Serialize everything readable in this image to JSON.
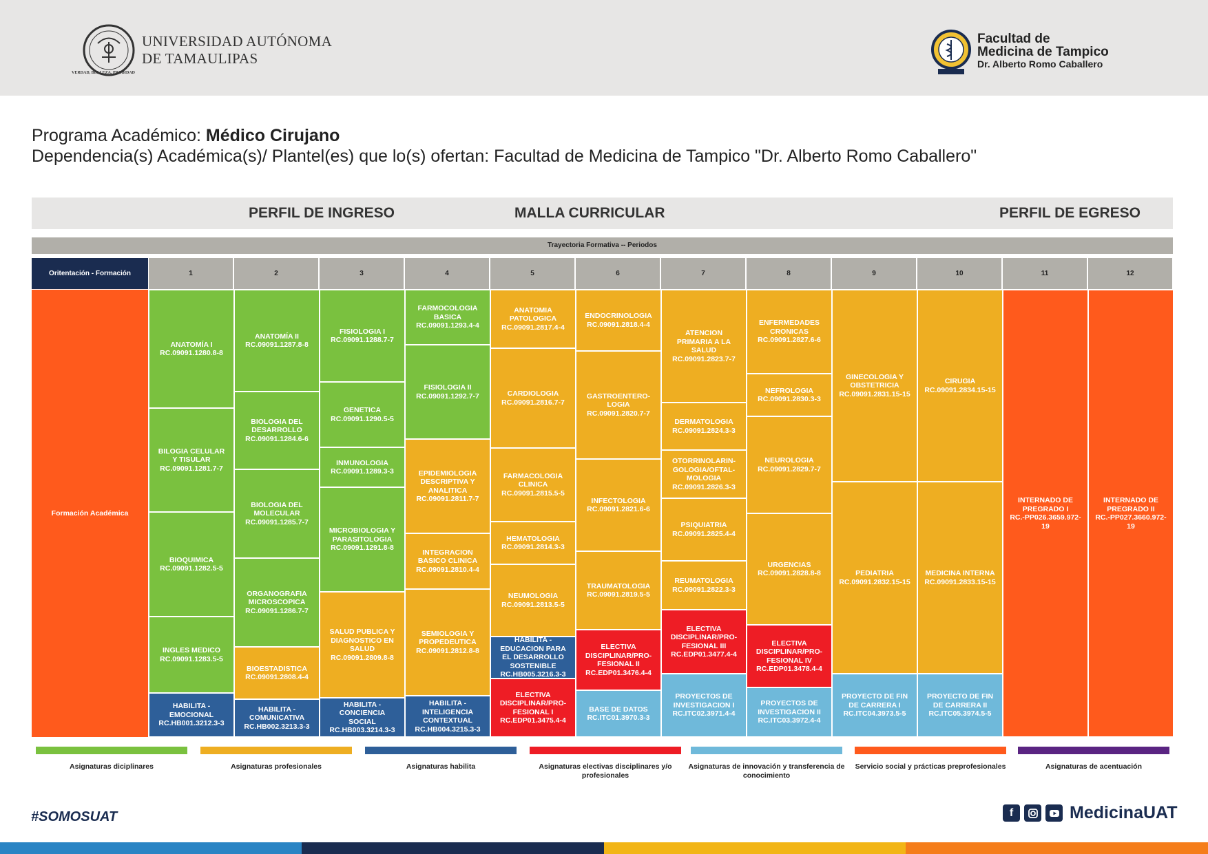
{
  "header": {
    "university_line1": "UNIVERSIDAD AUTÓNOMA",
    "university_line2": "DE TAMAULIPAS",
    "motto": "VERDAD, BELLEZA, PROBIDAD",
    "faculty_line1": "Facultad de",
    "faculty_line2": "Medicina de Tampico",
    "faculty_sub": "Dr. Alberto Romo Caballero"
  },
  "program": {
    "label": "Programa Académico: ",
    "name": "Médico Cirujano",
    "dependencia": "Dependencia(s) Académica(s)/ Plantel(es) que lo(s) ofertan: Facultad de Medicina de Tampico \"Dr. Alberto Romo Caballero\""
  },
  "band": {
    "ingreso": "PERFIL DE INGRESO",
    "malla": "MALLA CURRICULAR",
    "egreso": "PERFIL DE EGRESO"
  },
  "grid": {
    "trayectoria": "Trayectoria Formativa -- Periodos",
    "orientation_header": "Oritentación - Formación",
    "periods": [
      "1",
      "2",
      "3",
      "4",
      "5",
      "6",
      "7",
      "8",
      "9",
      "10",
      "11",
      "12"
    ],
    "orientation_label": "Formación Académica",
    "columns": [
      [
        {
          "n": "ANATOMÍA I",
          "c": "RC.09091.1280.8-8",
          "t": "g"
        },
        {
          "n": "BILOGIA CELULAR Y TISULAR",
          "c": "RC.09091.1281.7-7",
          "t": "g"
        },
        {
          "n": "BIOQUIMICA",
          "c": "RC.09091.1282.5-5",
          "t": "g"
        },
        {
          "n": "INGLES MEDICO",
          "c": "RC.09091.1283.5-5",
          "t": "g"
        },
        {
          "n": "HABILITA - EMOCIONAL",
          "c": "RC.HB001.3212.3-3",
          "t": "b"
        }
      ],
      [
        {
          "n": "ANATOMÍA II",
          "c": "RC.09091.1287.8-8",
          "t": "g"
        },
        {
          "n": "BIOLOGIA DEL DESARROLLO",
          "c": "RC.09091.1284.6-6",
          "t": "g"
        },
        {
          "n": "BIOLOGIA DEL MOLECULAR",
          "c": "RC.09091.1285.7-7",
          "t": "g"
        },
        {
          "n": "ORGANOGRAFIA MICROSCOPICA",
          "c": "RC.09091.1286.7-7",
          "t": "g"
        },
        {
          "n": "BIOESTADISTICA",
          "c": "RC.09091.2808.4-4",
          "t": "o"
        },
        {
          "n": "HABILITA - COMUNICATIVA",
          "c": "RC.HB002.3213.3-3",
          "t": "b"
        }
      ],
      [
        {
          "n": "FISIOLOGIA I",
          "c": "RC.09091.1288.7-7",
          "t": "g"
        },
        {
          "n": "GENETICA",
          "c": "RC.09091.1290.5-5",
          "t": "g"
        },
        {
          "n": "INMUNOLOGIA",
          "c": "RC.09091.1289.3-3",
          "t": "g"
        },
        {
          "n": "MICROBIOLOGIA Y PARASITOLOGIA",
          "c": "RC.09091.1291.8-8",
          "t": "g"
        },
        {
          "n": "SALUD PUBLICA Y DIAGNOSTICO EN SALUD",
          "c": "RC.09091.2809.8-8",
          "t": "o"
        },
        {
          "n": "HABILITA - CONCIENCIA SOCIAL",
          "c": "RC.HB003.3214.3-3",
          "t": "b"
        }
      ],
      [
        {
          "n": "FARMOCOLOGIA BASICA",
          "c": "RC.09091.1293.4-4",
          "t": "g"
        },
        {
          "n": "FISIOLOGIA II",
          "c": "RC.09091.1292.7-7",
          "t": "g"
        },
        {
          "n": "EPIDEMIOLOGIA DESCRIPTIVA Y ANALITICA",
          "c": "RC.09091.2811.7-7",
          "t": "o"
        },
        {
          "n": "INTEGRACION BASICO CLINICA",
          "c": "RC.09091.2810.4-4",
          "t": "o"
        },
        {
          "n": "SEMIOLOGIA Y PROPEDEUTICA",
          "c": "RC.09091.2812.8-8",
          "t": "o"
        },
        {
          "n": "HABILITA - INTELIGENCIA CONTEXTUAL",
          "c": "RC.HB004.3215.3-3",
          "t": "b"
        }
      ],
      [
        {
          "n": "ANATOMIA PATOLOGICA",
          "c": "RC.09091.2817.4-4",
          "t": "o"
        },
        {
          "n": "CARDIOLOGIA",
          "c": "RC.09091.2816.7-7",
          "t": "o"
        },
        {
          "n": "FARMACOLOGIA CLINICA",
          "c": "RC.09091.2815.5-5",
          "t": "o"
        },
        {
          "n": "HEMATOLOGIA",
          "c": "RC.09091.2814.3-3",
          "t": "o"
        },
        {
          "n": "NEUMOLOGIA",
          "c": "RC.09091.2813.5-5",
          "t": "o"
        },
        {
          "n": "HABILITA - EDUCACION PARA EL DESARROLLO SOSTENIBLE",
          "c": "RC.HB005.3216.3-3",
          "t": "b"
        },
        {
          "n": "ELECTIVA DISCIPLINAR/PRO-FESIONAL I",
          "c": "RC.EDP01.3475.4-4",
          "t": "r"
        }
      ],
      [
        {
          "n": "ENDOCRINOLOGIA",
          "c": "RC.09091.2818.4-4",
          "t": "o"
        },
        {
          "n": "GASTROENTERO-LOGIA",
          "c": "RC.09091.2820.7-7",
          "t": "o"
        },
        {
          "n": "INFECTOLOGIA",
          "c": "RC.09091.2821.6-6",
          "t": "o"
        },
        {
          "n": "TRAUMATOLOGIA",
          "c": "RC.09091.2819.5-5",
          "t": "o"
        },
        {
          "n": "ELECTIVA DISCIPLINAR/PRO-FESIONAL II",
          "c": "RC.EDP01.3476.4-4",
          "t": "r"
        },
        {
          "n": "BASE DE DATOS",
          "c": "RC.ITC01.3970.3-3",
          "t": "lb"
        }
      ],
      [
        {
          "n": "ATENCION PRIMARIA A LA SALUD",
          "c": "RC.09091.2823.7-7",
          "t": "o"
        },
        {
          "n": "DERMATOLOGIA",
          "c": "RC.09091.2824.3-3",
          "t": "o"
        },
        {
          "n": "OTORRINOLARIN-GOLOGIA/OFTAL-MOLOGIA",
          "c": "RC.09091.2826.3-3",
          "t": "o"
        },
        {
          "n": "PSIQUIATRIA",
          "c": "RC.09091.2825.4-4",
          "t": "o"
        },
        {
          "n": "REUMATOLOGIA",
          "c": "RC.09091.2822.3-3",
          "t": "o"
        },
        {
          "n": "ELECTIVA DISCIPLINAR/PRO-FESIONAL III",
          "c": "RC.EDP01.3477.4-4",
          "t": "r"
        },
        {
          "n": "PROYECTOS DE INVESTIGACION I",
          "c": "RC.ITC02.3971.4-4",
          "t": "lb"
        }
      ],
      [
        {
          "n": "ENFERMEDADES CRONICAS",
          "c": "RC.09091.2827.6-6",
          "t": "o"
        },
        {
          "n": "NEFROLOGIA",
          "c": "RC.09091.2830.3-3",
          "t": "o"
        },
        {
          "n": "NEUROLOGIA",
          "c": "RC.09091.2829.7-7",
          "t": "o"
        },
        {
          "n": "URGENCIAS",
          "c": "RC.09091.2828.8-8",
          "t": "o"
        },
        {
          "n": "ELECTIVA DISCIPLINAR/PRO-FESIONAL IV",
          "c": "RC.EDP01.3478.4-4",
          "t": "r"
        },
        {
          "n": "PROYECTOS DE INVESTIGACION II",
          "c": "RC.ITC03.3972.4-4",
          "t": "lb"
        }
      ],
      [
        {
          "n": "GINECOLOGIA Y OBSTETRICIA",
          "c": "RC.09091.2831.15-15",
          "t": "o"
        },
        {
          "n": "PEDIATRIA",
          "c": "RC.09091.2832.15-15",
          "t": "o"
        },
        {
          "n": "PROYECTO DE FIN DE CARRERA I",
          "c": "RC.ITC04.3973.5-5",
          "t": "lb"
        }
      ],
      [
        {
          "n": "CIRUGIA",
          "c": "RC.09091.2834.15-15",
          "t": "o"
        },
        {
          "n": "MEDICINA INTERNA",
          "c": "RC.09091.2833.15-15",
          "t": "o"
        },
        {
          "n": "PROYECTO DE FIN DE CARRERA II",
          "c": "RC.ITC05.3974.5-5",
          "t": "lb"
        }
      ],
      [
        {
          "n": "INTERNADO DE PREGRADO I",
          "c": "RC.-PP026.3659.972-19",
          "t": "or"
        }
      ],
      [
        {
          "n": "INTERNADO DE PREGRADO II",
          "c": "RC.-PP027.3660.972-19",
          "t": "or"
        }
      ]
    ]
  },
  "legend": [
    {
      "label": "Asignaturas diciplinares",
      "color": "#7ac13f"
    },
    {
      "label": "Asignaturas profesionales",
      "color": "#eeae22"
    },
    {
      "label": "Asignaturas habilita",
      "color": "#2e5f99"
    },
    {
      "label": "Asignaturas electivas disciplinares y/o profesionales",
      "color": "#ee1d25"
    },
    {
      "label": "Asignaturas de innovación y transferencia de conocimiento",
      "color": "#6fb9da"
    },
    {
      "label": "Servicio social y prácticas preprofesionales",
      "color": "#ff5a1c"
    },
    {
      "label": "Asignaturas de acentuación",
      "color": "#5a2482"
    }
  ],
  "footer": {
    "hashtag": "#SOMOSUAT",
    "handle": "MedicinaUAT"
  }
}
